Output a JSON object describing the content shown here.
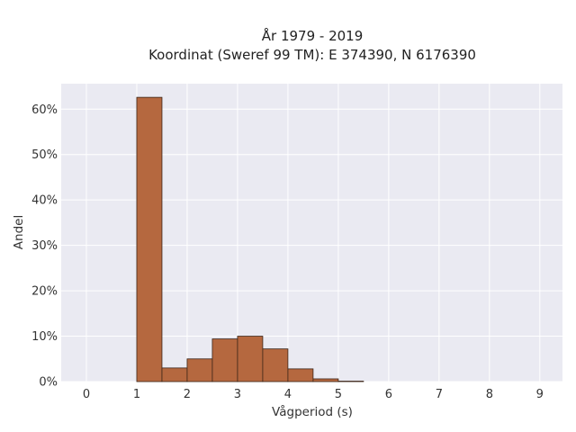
{
  "chart_data": {
    "type": "bar",
    "title_line1": "År 1979 - 2019",
    "title_line2": "Koordinat (Sweref 99 TM): E 374390, N 6176390",
    "xlabel": "Vågperiod (s)",
    "ylabel": "Andel",
    "xlim": [
      -0.5,
      9.45
    ],
    "ylim": [
      0,
      0.656
    ],
    "x_ticks": [
      0,
      1,
      2,
      3,
      4,
      5,
      6,
      7,
      8,
      9
    ],
    "x_tick_labels": [
      "0",
      "1",
      "2",
      "3",
      "4",
      "5",
      "6",
      "7",
      "8",
      "9"
    ],
    "y_ticks": [
      0,
      0.1,
      0.2,
      0.3,
      0.4,
      0.5,
      0.6
    ],
    "y_tick_labels": [
      "0%",
      "10%",
      "20%",
      "30%",
      "40%",
      "50%",
      "60%"
    ],
    "bin_width": 0.5,
    "bins": [
      {
        "start": 1.0,
        "value": 0.626
      },
      {
        "start": 1.5,
        "value": 0.03
      },
      {
        "start": 2.0,
        "value": 0.05
      },
      {
        "start": 2.5,
        "value": 0.094
      },
      {
        "start": 3.0,
        "value": 0.1
      },
      {
        "start": 3.5,
        "value": 0.072
      },
      {
        "start": 4.0,
        "value": 0.028
      },
      {
        "start": 4.5,
        "value": 0.006
      },
      {
        "start": 5.0,
        "value": 0.001
      }
    ],
    "grid": true,
    "colors": {
      "bar_fill": "#b5683f",
      "bar_stroke": "#3b2417",
      "plot_background": "#eaeaf2",
      "grid": "#ffffff"
    }
  }
}
